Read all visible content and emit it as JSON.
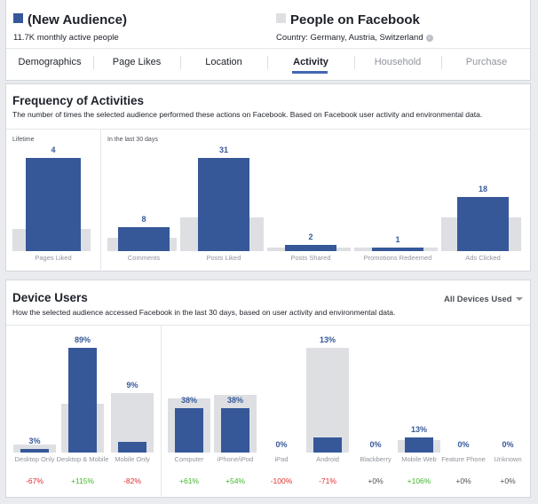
{
  "header": {
    "audience_name": "(New Audience)",
    "audience_sub": "11.7K monthly active people",
    "audience_color": "#365899",
    "compare_name": "People on Facebook",
    "compare_sub": "Country: Germany, Austria, Switzerland",
    "compare_color": "#dddfe2"
  },
  "tabs": [
    {
      "label": "Demographics",
      "state": "normal"
    },
    {
      "label": "Page Likes",
      "state": "normal"
    },
    {
      "label": "Location",
      "state": "normal"
    },
    {
      "label": "Activity",
      "state": "active"
    },
    {
      "label": "Household",
      "state": "disabled"
    },
    {
      "label": "Purchase",
      "state": "disabled"
    }
  ],
  "frequency": {
    "title": "Frequency of Activities",
    "description": "The number of times the selected audience performed these actions on Facebook. Based on Facebook user activity and environmental data.",
    "lifetime_label": "Lifetime",
    "last30_label": "In the last 30 days"
  },
  "device": {
    "title": "Device Users",
    "description": "How the selected audience accessed Facebook in the last 30 days, based on user activity and environmental data.",
    "dropdown": "All Devices Used"
  },
  "chart_data": [
    {
      "type": "bar",
      "title": "Frequency of Activities",
      "groups": [
        {
          "label": "Lifetime",
          "categories": [
            "Pages Liked"
          ],
          "values": [
            4
          ],
          "value_labels": [
            "4"
          ],
          "baseline_level": [
            0.24
          ]
        },
        {
          "label": "In the last 30 days",
          "categories": [
            "Comments",
            "Posts Liked",
            "Posts Shared",
            "Promotions Redeemed",
            "Ads Clicked"
          ],
          "values": [
            8,
            31,
            2,
            1,
            18
          ],
          "value_labels": [
            "8",
            "31",
            "2",
            "1",
            "18"
          ],
          "baseline_level": [
            0.14,
            0.36,
            0.03,
            0.03,
            0.36
          ]
        }
      ]
    },
    {
      "type": "bar",
      "title": "Device Users",
      "groups": [
        {
          "categories": [
            "Desktop Only",
            "Desktop & Mobile",
            "Mobile Only"
          ],
          "values": [
            3,
            89,
            9
          ],
          "value_labels": [
            "3%",
            "89%",
            "9%"
          ],
          "baseline_level": [
            0.08,
            0.47,
            0.57
          ],
          "comparisons": [
            "-67%",
            "+115%",
            "-82%"
          ]
        },
        {
          "categories": [
            "Computer",
            "iPhone/iPod",
            "iPad",
            "Android",
            "Blackberry",
            "Mobile Web",
            "Feature Phone",
            "Unknown"
          ],
          "values": [
            38,
            38,
            0,
            13,
            0,
            13,
            0,
            0
          ],
          "value_labels": [
            "38%",
            "38%",
            "0%",
            "13%",
            "0%",
            "13%",
            "0%",
            "0%"
          ],
          "baseline_level": [
            0.52,
            0.55,
            0,
            1.0,
            0,
            0.12,
            0,
            0
          ],
          "comparisons": [
            "+61%",
            "+54%",
            "-100%",
            "-71%",
            "+0%",
            "+106%",
            "+0%",
            "+0%"
          ]
        }
      ]
    }
  ]
}
